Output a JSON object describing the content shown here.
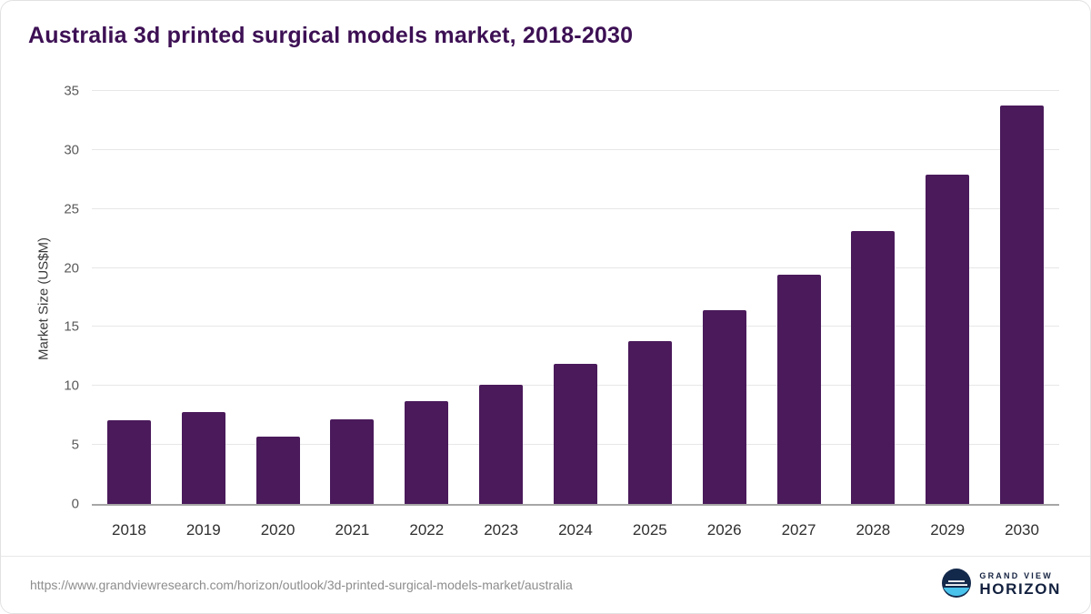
{
  "chart_data": {
    "type": "bar",
    "title": "Australia 3d printed surgical models market, 2018-2030",
    "ylabel": "Market Size (US$M)",
    "categories": [
      "2018",
      "2019",
      "2020",
      "2021",
      "2022",
      "2023",
      "2024",
      "2025",
      "2026",
      "2027",
      "2028",
      "2029",
      "2030"
    ],
    "values": [
      7.1,
      7.8,
      5.7,
      7.2,
      8.7,
      10.1,
      11.9,
      13.8,
      16.4,
      19.4,
      23.1,
      27.9,
      33.8
    ],
    "ylim": [
      0,
      35
    ],
    "yticks": [
      0,
      5,
      10,
      15,
      20,
      25,
      30,
      35
    ],
    "bar_color": "#4a1a5b",
    "grid": true,
    "legend": "none"
  },
  "footer": {
    "source_url": "https://www.grandviewresearch.com/horizon/outlook/3d-printed-surgical-models-market/australia",
    "logo": {
      "line1": "GRAND VIEW",
      "line2": "HORIZON"
    }
  },
  "colors": {
    "title": "#3d1054",
    "bar": "#4a1a5b",
    "gridline": "#e7e7e7",
    "logo_navy": "#13294b",
    "logo_blue": "#49c3eb"
  }
}
